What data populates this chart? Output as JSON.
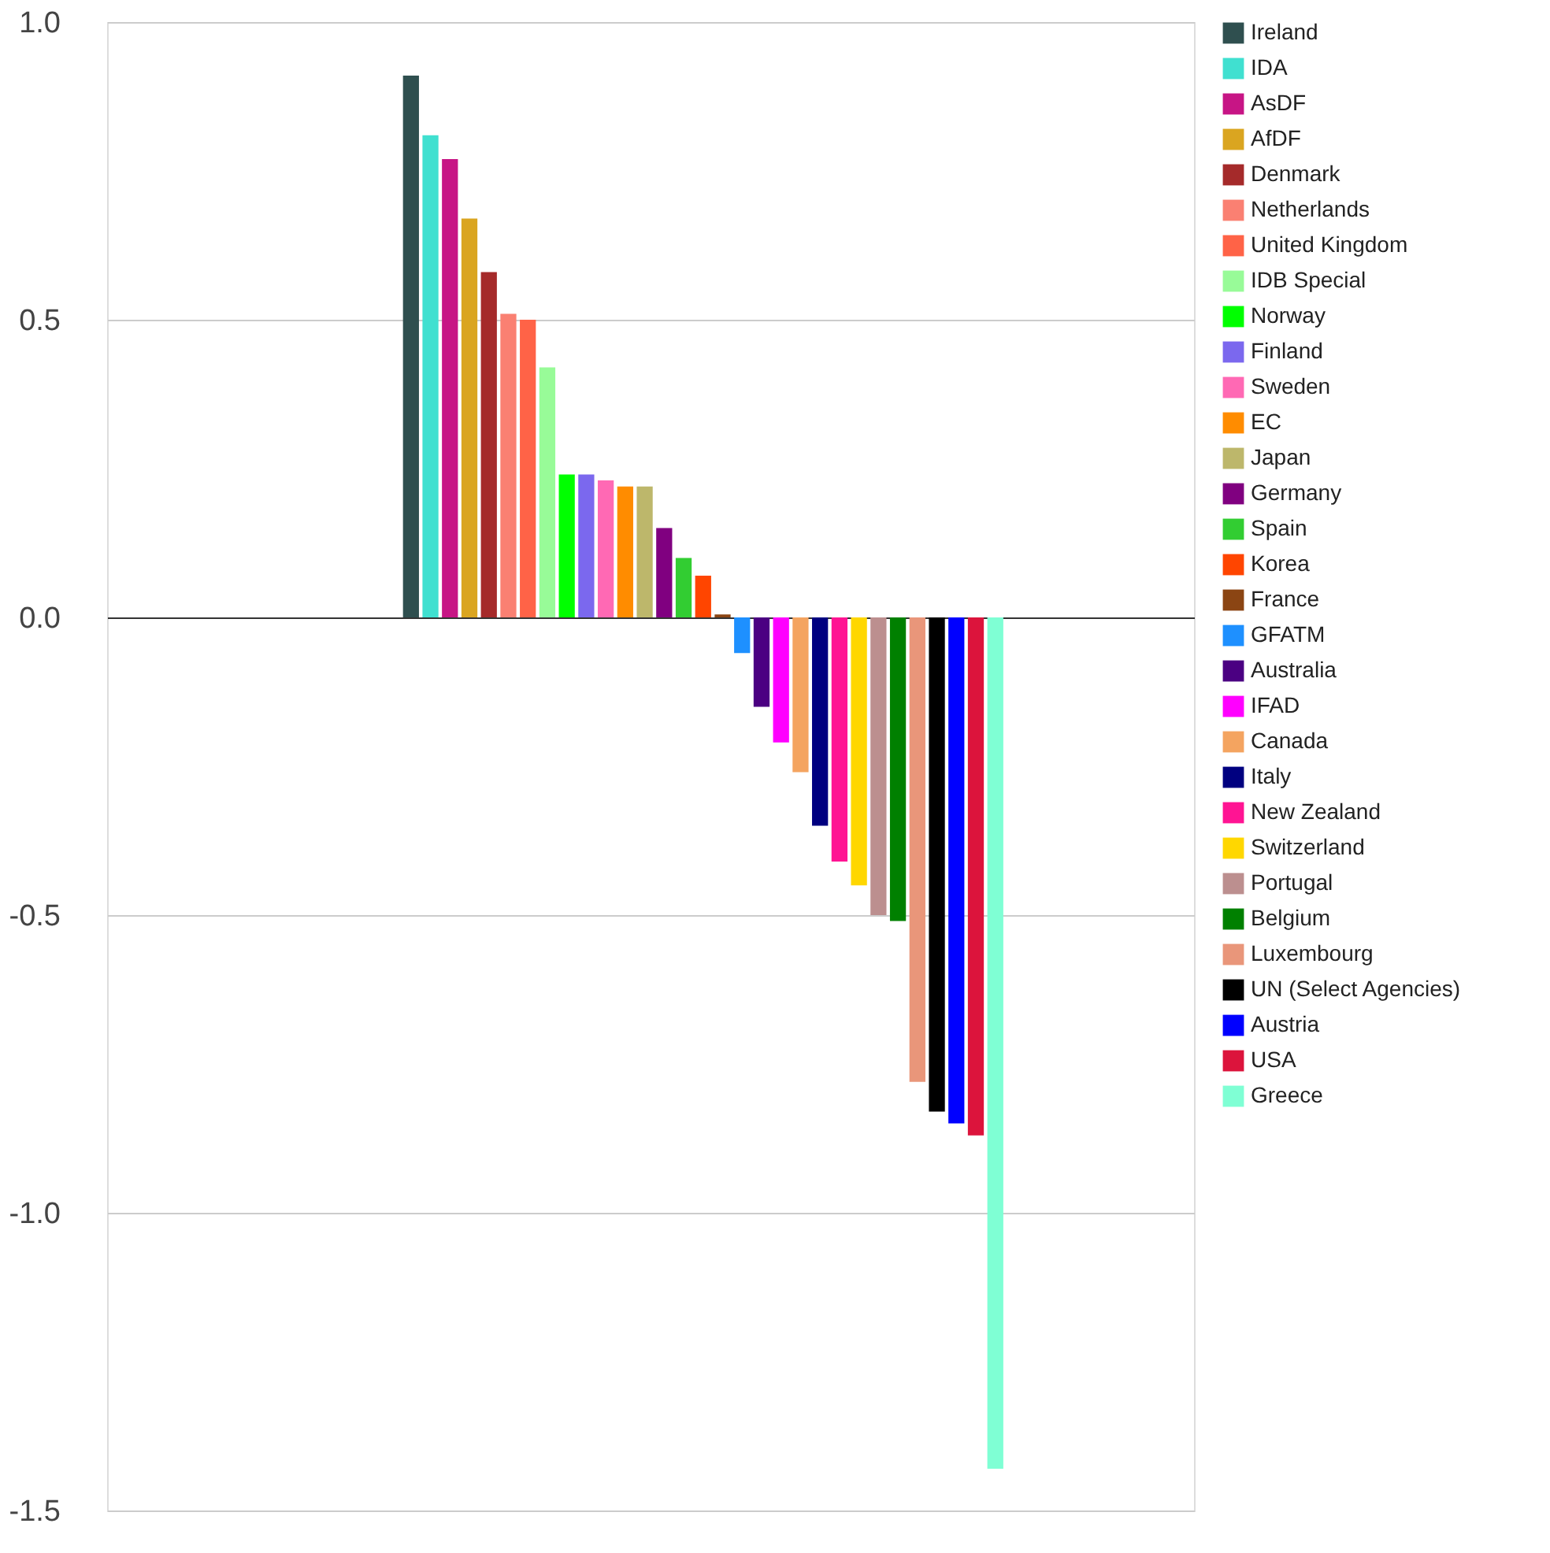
{
  "chart_data": {
    "type": "bar",
    "categories": [
      null
    ],
    "ylim": [
      -1.5,
      1.0
    ],
    "yticks": [
      {
        "value": -1.5,
        "label": "-1.5"
      },
      {
        "value": -1.0,
        "label": "-1.0"
      },
      {
        "value": -0.5,
        "label": "-0.5"
      },
      {
        "value": 0.0,
        "label": "0.0"
      },
      {
        "value": 0.5,
        "label": "0.5"
      },
      {
        "value": 1.0,
        "label": "1.0"
      }
    ],
    "grid": "y",
    "legend": "right",
    "series": [
      {
        "name": "Ireland",
        "color": "#2f4f4f",
        "values": [
          0.91
        ]
      },
      {
        "name": "IDA",
        "color": "#40e0d0",
        "values": [
          0.81
        ]
      },
      {
        "name": "AsDF",
        "color": "#c71585",
        "values": [
          0.77
        ]
      },
      {
        "name": "AfDF",
        "color": "#daa520",
        "values": [
          0.67
        ]
      },
      {
        "name": "Denmark",
        "color": "#a52a2a",
        "values": [
          0.58
        ]
      },
      {
        "name": "Netherlands",
        "color": "#fa8072",
        "values": [
          0.51
        ]
      },
      {
        "name": "United Kingdom",
        "color": "#ff6347",
        "values": [
          0.5
        ]
      },
      {
        "name": "IDB Special",
        "color": "#98fb98",
        "values": [
          0.42
        ]
      },
      {
        "name": "Norway",
        "color": "#00ff00",
        "values": [
          0.24
        ]
      },
      {
        "name": "Finland",
        "color": "#7b68ee",
        "values": [
          0.24
        ]
      },
      {
        "name": "Sweden",
        "color": "#ff69b4",
        "values": [
          0.23
        ]
      },
      {
        "name": "EC",
        "color": "#ff8c00",
        "values": [
          0.22
        ]
      },
      {
        "name": "Japan",
        "color": "#bdb76b",
        "values": [
          0.22
        ]
      },
      {
        "name": "Germany",
        "color": "#800080",
        "values": [
          0.15
        ]
      },
      {
        "name": "Spain",
        "color": "#32cd32",
        "values": [
          0.1
        ]
      },
      {
        "name": "Korea",
        "color": "#ff4500",
        "values": [
          0.07
        ]
      },
      {
        "name": "France",
        "color": "#8b4513",
        "values": [
          0.005
        ]
      },
      {
        "name": "GFATM",
        "color": "#1e90ff",
        "values": [
          -0.06
        ]
      },
      {
        "name": "Australia",
        "color": "#4b0082",
        "values": [
          -0.15
        ]
      },
      {
        "name": "IFAD",
        "color": "#ff00ff",
        "values": [
          -0.21
        ]
      },
      {
        "name": "Canada",
        "color": "#f4a460",
        "values": [
          -0.26
        ]
      },
      {
        "name": "Italy",
        "color": "#000080",
        "values": [
          -0.35
        ]
      },
      {
        "name": "New Zealand",
        "color": "#ff1493",
        "values": [
          -0.41
        ]
      },
      {
        "name": "Switzerland",
        "color": "#ffd700",
        "values": [
          -0.45
        ]
      },
      {
        "name": "Portugal",
        "color": "#bc8f8f",
        "values": [
          -0.5
        ]
      },
      {
        "name": "Belgium",
        "color": "#008000",
        "values": [
          -0.51
        ]
      },
      {
        "name": "Luxembourg",
        "color": "#e9967a",
        "values": [
          -0.78
        ]
      },
      {
        "name": "UN (Select Agencies)",
        "color": "#000000",
        "values": [
          -0.83
        ]
      },
      {
        "name": "Austria",
        "color": "#0000ff",
        "values": [
          -0.85
        ]
      },
      {
        "name": "USA",
        "color": "#dc143c",
        "values": [
          -0.87
        ]
      },
      {
        "name": "Greece",
        "color": "#7fffd4",
        "values": [
          -1.43
        ]
      }
    ]
  }
}
